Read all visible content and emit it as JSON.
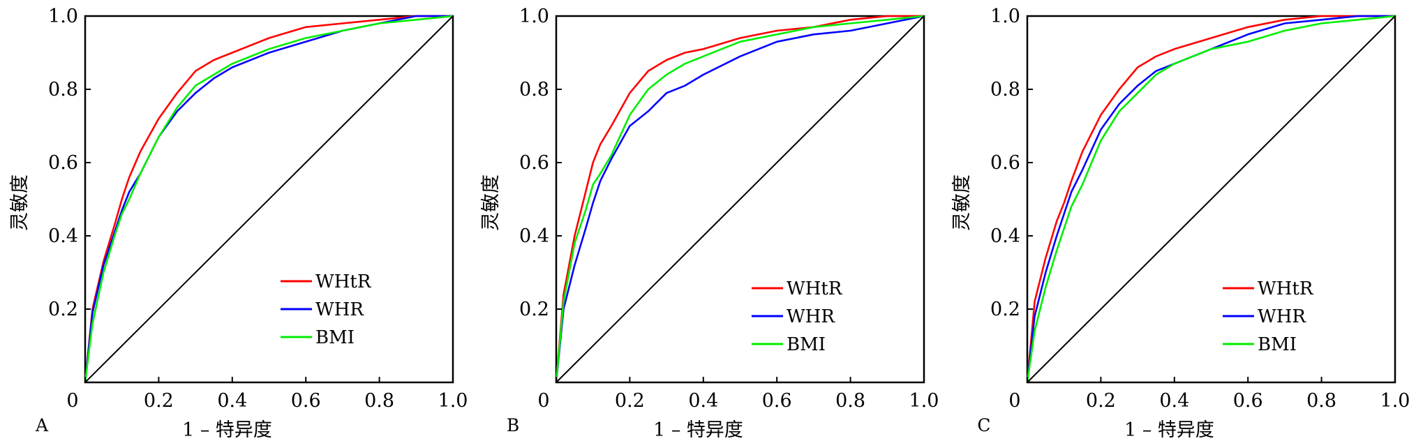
{
  "chart_data": [
    {
      "type": "line",
      "panel_label": "A",
      "xlabel": "1 – 特异度",
      "ylabel": "灵敏度",
      "xlim": [
        0,
        1.0
      ],
      "ylim": [
        0,
        1.0
      ],
      "x_ticks": [
        "0",
        "0.2",
        "0.4",
        "0.6",
        "0.8",
        "1.0"
      ],
      "y_ticks": [
        "0.2",
        "0.4",
        "0.6",
        "0.8",
        "1.0"
      ],
      "legend_position": "lower-right",
      "grid": false,
      "series": [
        {
          "name": "WHtR",
          "color": "#ff0000",
          "x": [
            0,
            0.02,
            0.05,
            0.08,
            0.1,
            0.12,
            0.15,
            0.2,
            0.25,
            0.3,
            0.35,
            0.4,
            0.5,
            0.6,
            0.7,
            0.8,
            0.9,
            1.0
          ],
          "y": [
            0,
            0.2,
            0.33,
            0.43,
            0.5,
            0.56,
            0.63,
            0.72,
            0.79,
            0.85,
            0.88,
            0.9,
            0.94,
            0.97,
            0.98,
            0.99,
            1.0,
            1.0
          ]
        },
        {
          "name": "WHR",
          "color": "#0000ff",
          "x": [
            0,
            0.02,
            0.05,
            0.08,
            0.1,
            0.12,
            0.15,
            0.2,
            0.25,
            0.3,
            0.35,
            0.4,
            0.5,
            0.6,
            0.7,
            0.8,
            0.9,
            1.0
          ],
          "y": [
            0,
            0.19,
            0.32,
            0.41,
            0.47,
            0.52,
            0.57,
            0.67,
            0.74,
            0.79,
            0.83,
            0.86,
            0.9,
            0.93,
            0.96,
            0.98,
            1.0,
            1.0
          ]
        },
        {
          "name": "BMI",
          "color": "#00ee00",
          "x": [
            0,
            0.02,
            0.05,
            0.08,
            0.1,
            0.12,
            0.15,
            0.2,
            0.25,
            0.3,
            0.35,
            0.4,
            0.5,
            0.6,
            0.7,
            0.8,
            0.9,
            1.0
          ],
          "y": [
            0,
            0.16,
            0.3,
            0.4,
            0.46,
            0.5,
            0.57,
            0.67,
            0.75,
            0.81,
            0.84,
            0.87,
            0.91,
            0.94,
            0.96,
            0.98,
            0.99,
            1.0
          ]
        },
        {
          "name": "",
          "color": "#000000",
          "x": [
            0,
            1.0
          ],
          "y": [
            0,
            1.0
          ]
        }
      ]
    },
    {
      "type": "line",
      "panel_label": "B",
      "xlabel": "1 – 特异度",
      "ylabel": "灵敏度",
      "xlim": [
        0,
        1.0
      ],
      "ylim": [
        0,
        1.0
      ],
      "x_ticks": [
        "0",
        "0.2",
        "0.4",
        "0.6",
        "0.8",
        "1.0"
      ],
      "y_ticks": [
        "0.2",
        "0.4",
        "0.6",
        "0.8",
        "1.0"
      ],
      "legend_position": "lower-right",
      "grid": false,
      "series": [
        {
          "name": "WHtR",
          "color": "#ff0000",
          "x": [
            0,
            0.02,
            0.05,
            0.08,
            0.1,
            0.12,
            0.15,
            0.2,
            0.25,
            0.3,
            0.35,
            0.4,
            0.5,
            0.6,
            0.7,
            0.8,
            0.9,
            1.0
          ],
          "y": [
            0,
            0.24,
            0.4,
            0.52,
            0.6,
            0.65,
            0.7,
            0.79,
            0.85,
            0.88,
            0.9,
            0.91,
            0.94,
            0.96,
            0.97,
            0.99,
            1.0,
            1.0
          ]
        },
        {
          "name": "WHR",
          "color": "#0000ff",
          "x": [
            0,
            0.02,
            0.05,
            0.08,
            0.1,
            0.12,
            0.15,
            0.2,
            0.25,
            0.3,
            0.35,
            0.4,
            0.5,
            0.6,
            0.7,
            0.8,
            0.9,
            1.0
          ],
          "y": [
            0,
            0.2,
            0.32,
            0.42,
            0.49,
            0.55,
            0.61,
            0.7,
            0.74,
            0.79,
            0.81,
            0.84,
            0.89,
            0.93,
            0.95,
            0.96,
            0.98,
            1.0
          ]
        },
        {
          "name": "BMI",
          "color": "#00ee00",
          "x": [
            0,
            0.02,
            0.05,
            0.08,
            0.1,
            0.12,
            0.15,
            0.2,
            0.25,
            0.3,
            0.35,
            0.4,
            0.5,
            0.6,
            0.7,
            0.8,
            0.9,
            1.0
          ],
          "y": [
            0,
            0.22,
            0.38,
            0.47,
            0.54,
            0.57,
            0.62,
            0.73,
            0.8,
            0.84,
            0.87,
            0.89,
            0.93,
            0.95,
            0.97,
            0.98,
            0.99,
            1.0
          ]
        },
        {
          "name": "",
          "color": "#000000",
          "x": [
            0,
            1.0
          ],
          "y": [
            0,
            1.0
          ]
        }
      ]
    },
    {
      "type": "line",
      "panel_label": "C",
      "xlabel": "1 – 特异度",
      "ylabel": "灵敏度",
      "xlim": [
        0,
        1.0
      ],
      "ylim": [
        0,
        1.0
      ],
      "x_ticks": [
        "0",
        "0.2",
        "0.4",
        "0.6",
        "0.8",
        "1.0"
      ],
      "y_ticks": [
        "0.2",
        "0.4",
        "0.6",
        "0.8",
        "1.0"
      ],
      "legend_position": "lower-right",
      "grid": false,
      "series": [
        {
          "name": "WHtR",
          "color": "#ff0000",
          "x": [
            0,
            0.02,
            0.05,
            0.08,
            0.1,
            0.12,
            0.15,
            0.2,
            0.25,
            0.3,
            0.35,
            0.4,
            0.5,
            0.6,
            0.7,
            0.8,
            0.9,
            1.0
          ],
          "y": [
            0,
            0.22,
            0.34,
            0.44,
            0.49,
            0.55,
            0.63,
            0.73,
            0.8,
            0.86,
            0.89,
            0.91,
            0.94,
            0.97,
            0.99,
            1.0,
            1.0,
            1.0
          ]
        },
        {
          "name": "WHR",
          "color": "#0000ff",
          "x": [
            0,
            0.02,
            0.05,
            0.08,
            0.1,
            0.12,
            0.15,
            0.2,
            0.25,
            0.3,
            0.35,
            0.4,
            0.5,
            0.6,
            0.7,
            0.8,
            0.9,
            1.0
          ],
          "y": [
            0,
            0.18,
            0.3,
            0.4,
            0.46,
            0.52,
            0.58,
            0.69,
            0.76,
            0.81,
            0.85,
            0.87,
            0.91,
            0.95,
            0.98,
            0.99,
            1.0,
            1.0
          ]
        },
        {
          "name": "BMI",
          "color": "#00ee00",
          "x": [
            0,
            0.02,
            0.05,
            0.08,
            0.1,
            0.12,
            0.15,
            0.2,
            0.25,
            0.3,
            0.35,
            0.4,
            0.5,
            0.6,
            0.7,
            0.8,
            0.9,
            1.0
          ],
          "y": [
            0,
            0.14,
            0.26,
            0.36,
            0.42,
            0.48,
            0.54,
            0.66,
            0.74,
            0.79,
            0.84,
            0.87,
            0.91,
            0.93,
            0.96,
            0.98,
            0.99,
            1.0
          ]
        },
        {
          "name": "",
          "color": "#000000",
          "x": [
            0,
            1.0
          ],
          "y": [
            0,
            1.0
          ]
        }
      ]
    }
  ]
}
